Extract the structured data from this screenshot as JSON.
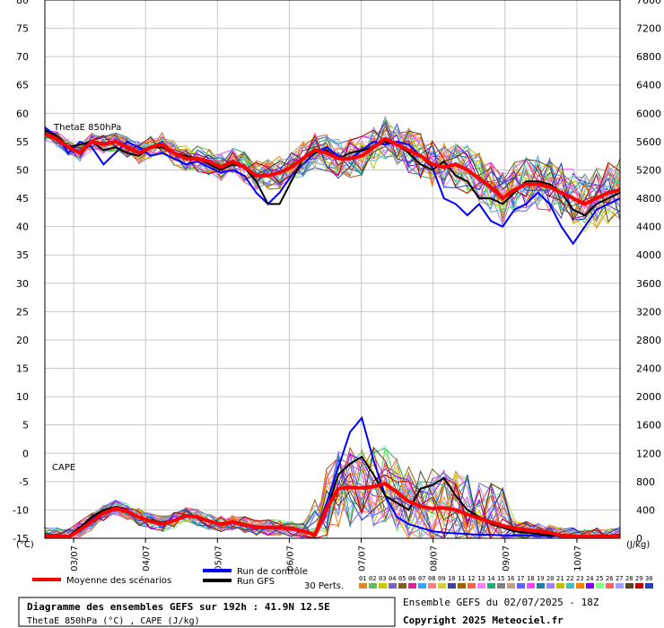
{
  "chart_data": {
    "type": "line",
    "left_axis": {
      "ticks": [
        "80",
        "75",
        "70",
        "65",
        "60",
        "55",
        "50",
        "45",
        "40",
        "35",
        "30",
        "25",
        "20",
        "15",
        "10",
        "5",
        "0",
        "-5",
        "-10",
        "-15"
      ],
      "unit": "(°C)",
      "ylim": [
        -15,
        80
      ]
    },
    "right_axis": {
      "ticks": [
        "7600",
        "7200",
        "6800",
        "6400",
        "6000",
        "5600",
        "5200",
        "4800",
        "4400",
        "4000",
        "3600",
        "3200",
        "2800",
        "2400",
        "2000",
        "1600",
        "1200",
        "800",
        "400",
        "0"
      ],
      "unit": "(J/kg)",
      "ylim": [
        0,
        7600
      ]
    },
    "x_labels": [
      "03/07",
      "04/07",
      "05/07",
      "06/07",
      "07/07",
      "08/07",
      "09/07",
      "10/07"
    ],
    "annotations": {
      "thetae": "ThetaE 850hPa",
      "cape": "CAPE"
    },
    "thetae": {
      "mean": [
        56.5,
        55.5,
        54,
        53,
        55,
        54.5,
        55,
        54,
        53,
        54,
        54.5,
        53,
        52,
        52,
        51.5,
        50.5,
        51.5,
        50.5,
        49,
        49,
        49.5,
        50.5,
        52,
        53.5,
        53,
        52,
        52,
        52.5,
        54,
        55.5,
        54.5,
        53.5,
        52.5,
        51,
        50.5,
        51,
        50,
        48.5,
        47,
        45,
        46.5,
        47.5,
        47.5,
        47,
        46,
        45,
        44,
        45,
        46,
        46.5
      ],
      "control": [
        57.5,
        56,
        53,
        55,
        54,
        51,
        53,
        55,
        54,
        52.5,
        53,
        52,
        51,
        51.5,
        50.5,
        49.5,
        50,
        49,
        46,
        44,
        46,
        49,
        51,
        53,
        54,
        52.5,
        52,
        53.5,
        55,
        54.5,
        55,
        54.5,
        52.5,
        50.5,
        45,
        44,
        42,
        44,
        41,
        40,
        43,
        44,
        46,
        44,
        40,
        37,
        40,
        43,
        44,
        45
      ],
      "gfs": [
        57,
        56,
        54,
        54.5,
        55,
        53.5,
        54,
        53,
        52.5,
        54,
        54,
        53,
        52.5,
        52,
        51,
        50,
        51,
        50.5,
        48,
        44,
        44,
        48,
        52,
        53,
        53.5,
        52,
        53,
        53.5,
        54,
        55,
        54.5,
        53,
        51,
        50,
        51.5,
        49,
        48,
        45,
        45,
        44,
        46,
        48,
        48,
        47.5,
        46,
        43,
        42,
        44,
        45,
        46
      ]
    },
    "cape": {
      "mean": [
        40,
        30,
        20,
        120,
        240,
        360,
        420,
        380,
        300,
        240,
        200,
        250,
        320,
        300,
        240,
        200,
        230,
        190,
        160,
        150,
        150,
        140,
        100,
        50,
        420,
        700,
        720,
        710,
        730,
        770,
        650,
        520,
        450,
        420,
        430,
        400,
        340,
        280,
        230,
        180,
        140,
        120,
        100,
        80,
        40,
        30,
        20,
        30,
        30,
        40
      ],
      "control": [
        60,
        40,
        30,
        160,
        280,
        380,
        440,
        400,
        300,
        250,
        220,
        260,
        320,
        300,
        240,
        200,
        220,
        180,
        150,
        150,
        140,
        130,
        90,
        50,
        500,
        1000,
        1500,
        1700,
        1100,
        600,
        300,
        200,
        150,
        100,
        80,
        70,
        60,
        50,
        50,
        40,
        40,
        40,
        30,
        30,
        30,
        20,
        20,
        30,
        30,
        40
      ],
      "gfs": [
        60,
        40,
        30,
        160,
        300,
        400,
        440,
        380,
        300,
        260,
        220,
        260,
        330,
        310,
        250,
        200,
        230,
        180,
        150,
        150,
        140,
        130,
        90,
        50,
        400,
        900,
        1050,
        1150,
        900,
        600,
        500,
        400,
        700,
        750,
        850,
        600,
        400,
        300,
        200,
        150,
        100,
        80,
        60,
        40,
        30,
        20,
        20,
        30,
        30,
        40
      ]
    },
    "legend": {
      "mean_label": "Moyenne des scénarios",
      "control_label": "Run de contrôle",
      "gfs_label": "Run GFS",
      "perts_label": "30 Perts."
    },
    "pert_numbers": [
      "01",
      "02",
      "03",
      "04",
      "05",
      "06",
      "07",
      "08",
      "09",
      "10",
      "11",
      "12",
      "13",
      "14",
      "15",
      "16",
      "17",
      "18",
      "19",
      "20",
      "21",
      "22",
      "23",
      "24",
      "25",
      "26",
      "27",
      "28",
      "29",
      "30"
    ],
    "pert_colors": [
      "#e0872c",
      "#60c060",
      "#c8c800",
      "#8060c0",
      "#806020",
      "#e02090",
      "#40a0ff",
      "#ff8080",
      "#d0d040",
      "#4040a0",
      "#a06000",
      "#ff6040",
      "#ff80ff",
      "#20b070",
      "#808080",
      "#c0a080",
      "#6060ff",
      "#ff40ff",
      "#2080a0",
      "#a080ff",
      "#c0c000",
      "#40c0c0",
      "#ff8000",
      "#8000ff",
      "#80ff80",
      "#ff6060",
      "#a0a0ff",
      "#604020",
      "#c00000",
      "#2040c0"
    ],
    "colors": {
      "mean": "#ff0000",
      "control": "#0000ff",
      "gfs": "#000000",
      "grid": "#c8c8c8"
    }
  },
  "footer": {
    "title": "Diagramme des ensembles GEFS sur 192h : 41.9N 12.5E",
    "subtitle": "ThetaE 850hPa (°C) , CAPE (J/kg)",
    "run_info": "Ensemble GEFS du 02/07/2025 - 18Z",
    "copyright": "Copyright 2025 Meteociel.fr"
  }
}
